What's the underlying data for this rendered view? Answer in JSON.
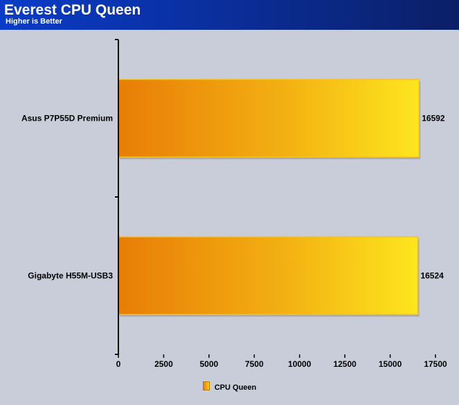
{
  "header": {
    "title": "Everest CPU Queen",
    "subtitle": "Higher is Better"
  },
  "colors": {
    "header_start": "#0a3cc8",
    "header_end": "#0b1f66",
    "bar_start": "#e87d06",
    "bar_end": "#fde61e",
    "background": "#c9ccd9"
  },
  "chart_data": {
    "type": "bar",
    "orientation": "horizontal",
    "title": "Everest CPU Queen",
    "subtitle": "Higher is Better",
    "categories": [
      "Asus P7P55D Premium",
      "Gigabyte H55M-USB3"
    ],
    "series": [
      {
        "name": "CPU Queen",
        "values": [
          16592,
          16524
        ]
      }
    ],
    "xlim": [
      0,
      17500
    ],
    "xticks": [
      0,
      2500,
      5000,
      7500,
      10000,
      12500,
      15000,
      17500
    ],
    "xtick_labels": [
      "0",
      "2500",
      "5000",
      "7500",
      "10000",
      "12500",
      "15000",
      "17500"
    ],
    "value_labels": [
      "16592",
      "16524"
    ],
    "grid": false,
    "legend_position": "bottom"
  },
  "legend": {
    "label": "CPU Queen"
  }
}
